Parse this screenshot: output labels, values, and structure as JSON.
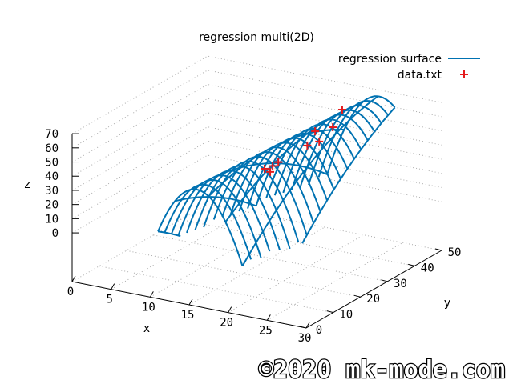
{
  "chart_data": {
    "type": "surface3d",
    "title": "regression multi(2D)",
    "xlabel": "x",
    "ylabel": "y",
    "zlabel": "z",
    "xlim": [
      0,
      30
    ],
    "ylim": [
      0,
      50
    ],
    "zlim": [
      0,
      70
    ],
    "xticks": [
      "0",
      "5",
      "10",
      "15",
      "20",
      "25",
      "30"
    ],
    "yticks": [
      "0",
      "10",
      "20",
      "30",
      "40",
      "50"
    ],
    "zticks": [
      "0",
      "10",
      "20",
      "30",
      "40",
      "50",
      "60",
      "70"
    ],
    "grid": true,
    "legend": {
      "position": "top-right",
      "entries": [
        "regression surface",
        "data.txt"
      ]
    },
    "series": [
      {
        "name": "regression surface",
        "kind": "surface",
        "color": "#0072b2",
        "model": {
          "a": 48,
          "b": 0.35,
          "c": 1.4,
          "x0": 16,
          "x0_slope": 0.12
        },
        "x_range": [
          11,
          24
        ],
        "y_range": [
          0,
          50
        ],
        "x_samples": 7,
        "y_samples": 21
      },
      {
        "name": "data.txt",
        "kind": "points",
        "color": "#e41a1c",
        "points": [
          {
            "x": 20,
            "y": 42.1,
            "z": 62.7
          },
          {
            "x": 20,
            "y": 32.1,
            "z": 58.4
          },
          {
            "x": 20,
            "y": 38.6,
            "z": 54.1
          },
          {
            "x": 20,
            "y": 29.2,
            "z": 51.5
          },
          {
            "x": 20,
            "y": 33.6,
            "z": 49.5
          },
          {
            "x": 20,
            "y": 13.4,
            "z": 52.4
          },
          {
            "x": 20,
            "y": 15.5,
            "z": 47.9
          },
          {
            "x": 20,
            "y": 16.4,
            "z": 51.1
          },
          {
            "x": 20,
            "y": 18.5,
            "z": 51.5
          }
        ]
      }
    ]
  },
  "watermark": "©2020 mk-mode.com"
}
